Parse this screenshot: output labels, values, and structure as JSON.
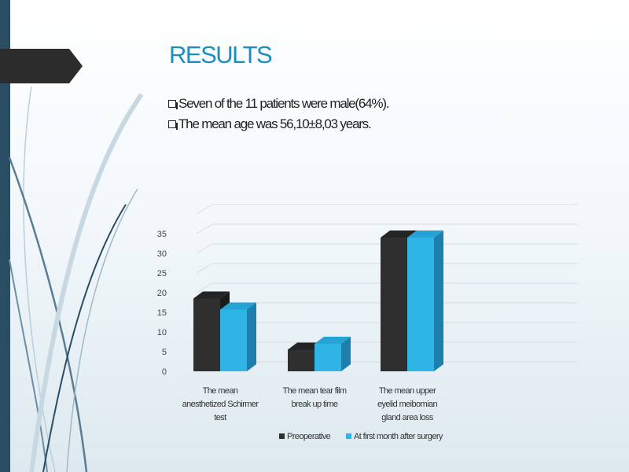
{
  "slide": {
    "title": "RESULTS",
    "bullets": [
      "Seven of the 11 patients were male(64%).",
      "The mean age was 56,10±8,03 years."
    ]
  },
  "chart_data": {
    "type": "bar",
    "subtype": "3d-clustered-column",
    "categories": [
      [
        "The mean",
        "anesthetized Schirmer",
        "test"
      ],
      [
        "The mean tear film",
        "break up time"
      ],
      [
        "The mean upper",
        "eyelid meibomian",
        "gland area loss"
      ]
    ],
    "series": [
      {
        "name": "Preoperative",
        "values": [
          18.5,
          5.5,
          34
        ],
        "color": "#2f2f2f"
      },
      {
        "name": "At first month after surgery",
        "values": [
          15.7,
          7,
          34
        ],
        "color": "#2fb4e6"
      }
    ],
    "yticks": [
      "0",
      "5",
      "10",
      "15",
      "20",
      "25",
      "30",
      "35"
    ],
    "ylim": [
      0,
      40
    ],
    "grid": true,
    "legend_position": "bottom",
    "title": "",
    "xlabel": "",
    "ylabel": ""
  }
}
